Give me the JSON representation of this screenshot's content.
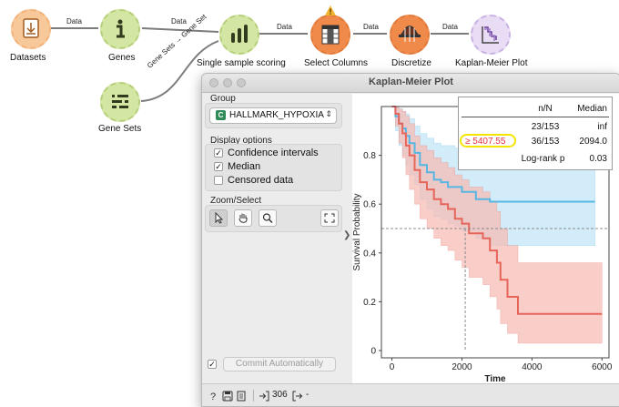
{
  "workflow": {
    "nodes": [
      {
        "key": "datasets",
        "label": "Datasets",
        "icon": "datasets-icon"
      },
      {
        "key": "genes",
        "label": "Genes",
        "icon": "info-icon"
      },
      {
        "key": "gene_sets",
        "label": "Gene Sets",
        "icon": "gene-sets-icon"
      },
      {
        "key": "sss",
        "label": "Single sample scoring",
        "icon": "bar-chart-icon"
      },
      {
        "key": "select_columns",
        "label": "Select Columns",
        "icon": "select-columns-icon"
      },
      {
        "key": "discretize",
        "label": "Discretize",
        "icon": "discretize-icon"
      },
      {
        "key": "km",
        "label": "Kaplan-Meier Plot",
        "icon": "km-plot-icon"
      }
    ],
    "links": {
      "datasets_genes": "Data",
      "genes_sss": "Data",
      "genesets_sss": "Gene Sets → Gene Set",
      "sss_select": "Data",
      "select_discretize": "Data",
      "discretize_km": "Data"
    },
    "warning_icon": "warning-icon"
  },
  "dialog": {
    "title": "Kaplan-Meier Plot",
    "group": {
      "title": "Group",
      "selected": "HALLMARK_HYPOXIA",
      "type_tag": "C"
    },
    "display_options": {
      "title": "Display options",
      "items": [
        {
          "label": "Confidence intervals",
          "checked": true
        },
        {
          "label": "Median",
          "checked": true
        },
        {
          "label": "Censored data",
          "checked": false
        }
      ]
    },
    "zoom_select": {
      "title": "Zoom/Select",
      "tools": [
        "pointer-icon",
        "hand-icon",
        "magnifier-icon",
        "fit-icon"
      ],
      "active": "pointer-icon"
    },
    "commit": {
      "checked": true,
      "label": "Commit Automatically"
    },
    "status": {
      "count": "306",
      "output": "-"
    }
  },
  "stats": {
    "headers": [
      "n/N",
      "Median"
    ],
    "rows": [
      {
        "group": "",
        "nN": "23/153",
        "median": "inf"
      },
      {
        "group": "≥ 5407.55",
        "nN": "36/153",
        "median": "2094.0"
      }
    ],
    "logrank_label": "Log-rank p",
    "logrank_value": "0.03"
  },
  "chart_data": {
    "type": "line",
    "title": "",
    "xlabel": "Time",
    "ylabel": "Survival Probability",
    "xlim": [
      -300,
      6200
    ],
    "ylim": [
      -0.03,
      1.0
    ],
    "xticks": [
      0,
      2000,
      4000,
      6000
    ],
    "yticks": [
      0,
      0.2,
      0.4,
      0.6,
      0.8
    ],
    "median_line": {
      "y": 0.5,
      "x": 2094
    },
    "colors": {
      "low": "#58b6e2",
      "high": "#e6655a",
      "low_ci": "#bfe6f7",
      "high_ci": "#f6b9b2",
      "median": "#8c8c8c"
    },
    "series": [
      {
        "name": "",
        "color_key": "low",
        "x": [
          0,
          100,
          200,
          300,
          400,
          500,
          650,
          800,
          1000,
          1200,
          1400,
          1600,
          1800,
          2000,
          2400,
          2800,
          5800
        ],
        "y": [
          1.0,
          0.96,
          0.93,
          0.91,
          0.88,
          0.85,
          0.81,
          0.76,
          0.73,
          0.7,
          0.69,
          0.67,
          0.67,
          0.65,
          0.62,
          0.61,
          0.61
        ],
        "ci_upper": [
          1.0,
          1.0,
          0.99,
          0.98,
          0.97,
          0.95,
          0.92,
          0.89,
          0.87,
          0.85,
          0.84,
          0.84,
          0.83,
          0.83,
          0.82,
          0.82,
          0.82
        ],
        "ci_lower": [
          1.0,
          0.9,
          0.84,
          0.8,
          0.76,
          0.72,
          0.68,
          0.62,
          0.58,
          0.55,
          0.54,
          0.52,
          0.51,
          0.49,
          0.46,
          0.43,
          0.43
        ]
      },
      {
        "name": "≥ 5407.55",
        "color_key": "high",
        "x": [
          0,
          100,
          200,
          300,
          400,
          500,
          650,
          800,
          1000,
          1200,
          1400,
          1600,
          1800,
          2000,
          2200,
          2600,
          2800,
          3000,
          3100,
          3300,
          3600,
          5500,
          6000
        ],
        "y": [
          1.0,
          0.97,
          0.93,
          0.89,
          0.84,
          0.8,
          0.74,
          0.69,
          0.66,
          0.62,
          0.6,
          0.58,
          0.54,
          0.52,
          0.48,
          0.46,
          0.41,
          0.36,
          0.29,
          0.22,
          0.15,
          0.15,
          0.15
        ],
        "ci_upper": [
          1.0,
          1.0,
          0.99,
          0.98,
          0.96,
          0.93,
          0.88,
          0.84,
          0.82,
          0.79,
          0.77,
          0.75,
          0.72,
          0.7,
          0.67,
          0.65,
          0.61,
          0.57,
          0.5,
          0.43,
          0.36,
          0.36,
          0.36
        ],
        "ci_lower": [
          1.0,
          0.92,
          0.85,
          0.79,
          0.72,
          0.66,
          0.6,
          0.54,
          0.5,
          0.46,
          0.43,
          0.41,
          0.37,
          0.34,
          0.3,
          0.27,
          0.22,
          0.17,
          0.11,
          0.07,
          0.03,
          0.03,
          0.03
        ]
      }
    ]
  }
}
